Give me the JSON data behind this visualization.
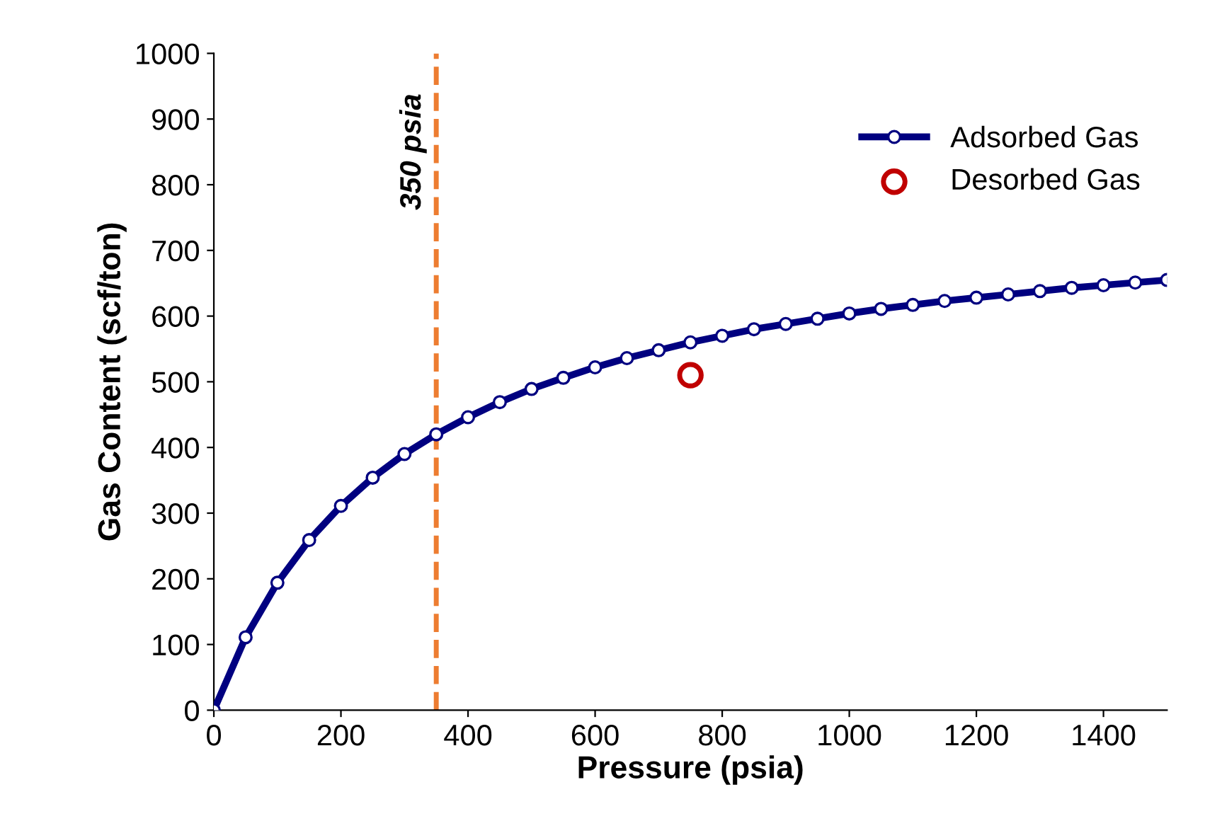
{
  "chart_data": {
    "type": "line",
    "xlabel": "Pressure (psia)",
    "ylabel": "Gas Content (scf/ton)",
    "xlim": [
      0,
      1500
    ],
    "xticks": [
      0,
      200,
      400,
      600,
      800,
      1000,
      1200,
      1400
    ],
    "ylim": [
      0,
      1000
    ],
    "yticks": [
      0,
      100,
      200,
      300,
      400,
      500,
      600,
      700,
      800,
      900,
      1000
    ],
    "grid": false,
    "legend": "top right",
    "series": [
      {
        "name": "Adsorbed Gas",
        "color": "#000080",
        "marker": "circle",
        "line_style": "solid",
        "x": [
          0,
          50,
          100,
          150,
          200,
          250,
          300,
          350,
          400,
          450,
          500,
          550,
          600,
          650,
          700,
          750,
          800,
          850,
          900,
          950,
          1000,
          1050,
          1100,
          1150,
          1200,
          1250,
          1300,
          1350,
          1400,
          1450,
          1500
        ],
        "values": [
          0,
          111,
          194,
          259,
          311,
          354,
          390,
          420,
          446,
          469,
          489,
          506,
          522,
          536,
          548,
          560,
          570,
          580,
          588,
          596,
          604,
          611,
          617,
          623,
          628,
          633,
          638,
          643,
          647,
          651,
          655
        ]
      },
      {
        "name": "Desorbed Gas",
        "type": "scatter",
        "color": "#c00000",
        "marker": "circle",
        "x": [
          750
        ],
        "values": [
          510
        ]
      }
    ],
    "ref_lines": [
      {
        "axis": "x",
        "value": 350,
        "label": "350 psia",
        "color": "#ed7d31",
        "line_style": "dashed"
      }
    ]
  }
}
